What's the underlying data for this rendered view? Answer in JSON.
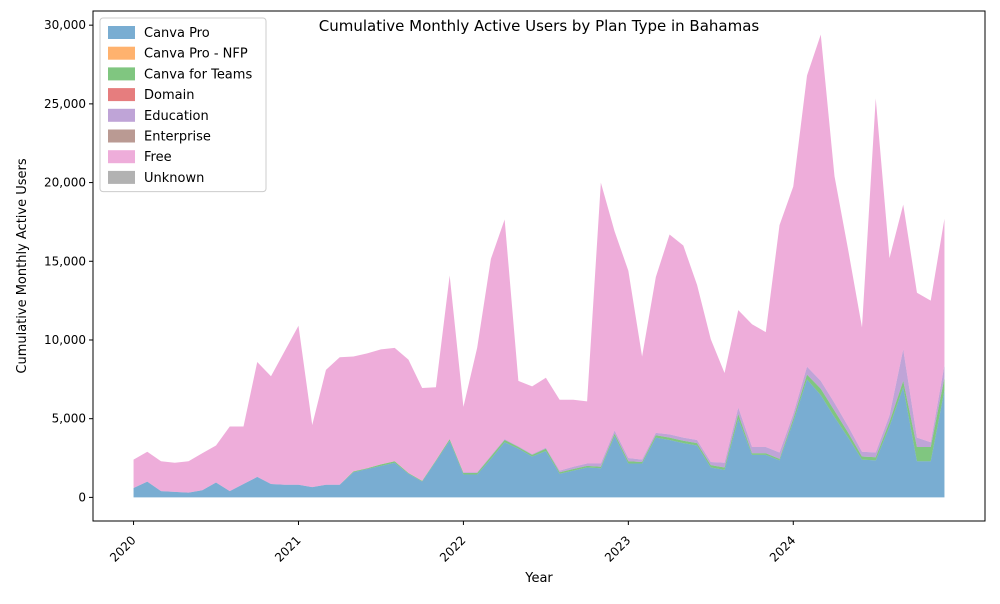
{
  "chart_data": {
    "type": "area",
    "stacked": true,
    "title": "Cumulative Monthly Active Users by Plan Type in Bahamas",
    "xlabel": "Year",
    "ylabel": "Cumulative Monthly Active Users",
    "x_start": "2020-01",
    "x_end": "2024-12",
    "x_ticks": [
      {
        "date": "2020-01",
        "label": "2020"
      },
      {
        "date": "2021-01",
        "label": "2021"
      },
      {
        "date": "2022-01",
        "label": "2022"
      },
      {
        "date": "2023-01",
        "label": "2023"
      },
      {
        "date": "2024-01",
        "label": "2024"
      }
    ],
    "ylim": [
      -1500,
      30900
    ],
    "y_ticks": [
      {
        "value": 0,
        "label": "0"
      },
      {
        "value": 5000,
        "label": "5,000"
      },
      {
        "value": 10000,
        "label": "10,000"
      },
      {
        "value": 15000,
        "label": "15,000"
      },
      {
        "value": 20000,
        "label": "20,000"
      },
      {
        "value": 25000,
        "label": "25,000"
      },
      {
        "value": 30000,
        "label": "30,000"
      }
    ],
    "grid": false,
    "legend_position": "top-left",
    "categories": [
      "2020-01",
      "2020-02",
      "2020-03",
      "2020-04",
      "2020-05",
      "2020-06",
      "2020-07",
      "2020-08",
      "2020-09",
      "2020-10",
      "2020-11",
      "2020-12",
      "2021-01",
      "2021-02",
      "2021-03",
      "2021-04",
      "2021-05",
      "2021-06",
      "2021-07",
      "2021-08",
      "2021-09",
      "2021-10",
      "2021-11",
      "2021-12",
      "2022-01",
      "2022-02",
      "2022-03",
      "2022-04",
      "2022-05",
      "2022-06",
      "2022-07",
      "2022-08",
      "2022-09",
      "2022-10",
      "2022-11",
      "2022-12",
      "2023-01",
      "2023-02",
      "2023-03",
      "2023-04",
      "2023-05",
      "2023-06",
      "2023-07",
      "2023-08",
      "2023-09",
      "2023-10",
      "2023-11",
      "2023-12",
      "2024-01",
      "2024-02",
      "2024-03",
      "2024-04",
      "2024-05",
      "2024-06",
      "2024-07",
      "2024-08",
      "2024-09",
      "2024-10",
      "2024-11",
      "2024-12"
    ],
    "series": [
      {
        "name": "Canva Pro",
        "color": "#1f77b4",
        "values": [
          600,
          1000,
          400,
          350,
          300,
          450,
          950,
          400,
          850,
          1300,
          850,
          800,
          800,
          650,
          800,
          800,
          1600,
          1800,
          2000,
          2200,
          1500,
          1000,
          2300,
          3600,
          1450,
          1450,
          2450,
          3500,
          3100,
          2600,
          2950,
          1500,
          1700,
          1900,
          1850,
          3900,
          2150,
          2150,
          3800,
          3650,
          3450,
          3300,
          1900,
          1750,
          5000,
          2700,
          2700,
          2350,
          4800,
          7500,
          6500,
          5100,
          3800,
          2400,
          2350,
          4500,
          7000,
          2300,
          2300,
          6800
        ]
      },
      {
        "name": "Canva Pro - NFP",
        "color": "#ff7f0e",
        "values": [
          0,
          0,
          0,
          0,
          0,
          0,
          0,
          0,
          0,
          0,
          0,
          0,
          0,
          0,
          0,
          0,
          0,
          0,
          0,
          0,
          0,
          0,
          0,
          0,
          0,
          0,
          0,
          0,
          0,
          0,
          0,
          0,
          0,
          0,
          0,
          0,
          0,
          0,
          0,
          0,
          0,
          0,
          0,
          0,
          0,
          0,
          0,
          0,
          0,
          0,
          0,
          0,
          0,
          0,
          0,
          0,
          0,
          0,
          0,
          0
        ]
      },
      {
        "name": "Canva for Teams",
        "color": "#2ca02c",
        "values": [
          0,
          0,
          0,
          0,
          0,
          0,
          0,
          0,
          0,
          0,
          0,
          0,
          0,
          0,
          0,
          0,
          50,
          50,
          100,
          100,
          50,
          50,
          50,
          100,
          100,
          100,
          150,
          150,
          100,
          100,
          150,
          100,
          100,
          100,
          100,
          150,
          150,
          100,
          150,
          150,
          150,
          150,
          150,
          150,
          300,
          100,
          100,
          100,
          200,
          300,
          400,
          400,
          300,
          200,
          200,
          300,
          400,
          900,
          900,
          800
        ]
      },
      {
        "name": "Domain",
        "color": "#d62728",
        "values": [
          0,
          0,
          0,
          0,
          0,
          0,
          0,
          0,
          0,
          0,
          0,
          0,
          0,
          0,
          0,
          0,
          0,
          0,
          0,
          0,
          0,
          0,
          0,
          0,
          0,
          0,
          0,
          0,
          0,
          0,
          0,
          0,
          0,
          0,
          0,
          0,
          0,
          0,
          0,
          0,
          0,
          0,
          0,
          0,
          0,
          0,
          0,
          0,
          0,
          0,
          0,
          0,
          0,
          0,
          0,
          0,
          0,
          0,
          0,
          0
        ]
      },
      {
        "name": "Education",
        "color": "#9467bd",
        "values": [
          0,
          0,
          0,
          0,
          0,
          0,
          0,
          0,
          0,
          0,
          0,
          0,
          0,
          0,
          0,
          0,
          0,
          0,
          0,
          0,
          0,
          0,
          0,
          0,
          50,
          50,
          50,
          50,
          50,
          50,
          50,
          100,
          150,
          150,
          200,
          200,
          200,
          150,
          150,
          200,
          200,
          200,
          200,
          300,
          400,
          400,
          400,
          400,
          300,
          500,
          500,
          500,
          400,
          300,
          300,
          400,
          2000,
          600,
          300,
          800
        ]
      },
      {
        "name": "Enterprise",
        "color": "#8c564b",
        "values": [
          0,
          0,
          0,
          0,
          0,
          0,
          0,
          0,
          0,
          0,
          0,
          0,
          0,
          0,
          0,
          0,
          0,
          0,
          0,
          0,
          0,
          0,
          0,
          0,
          0,
          0,
          0,
          0,
          0,
          0,
          0,
          0,
          0,
          0,
          0,
          0,
          0,
          0,
          0,
          0,
          0,
          0,
          0,
          0,
          0,
          0,
          0,
          0,
          0,
          0,
          0,
          0,
          0,
          0,
          0,
          0,
          0,
          0,
          0,
          0
        ]
      },
      {
        "name": "Free",
        "color": "#e377c2",
        "values": [
          1800,
          1900,
          1900,
          1850,
          2000,
          2350,
          2350,
          4100,
          3650,
          7300,
          6850,
          8500,
          10100,
          3950,
          7300,
          8100,
          7300,
          7300,
          7300,
          7200,
          7200,
          5900,
          4650,
          10400,
          4150,
          7900,
          12500,
          13950,
          4150,
          4300,
          4450,
          4500,
          4250,
          3950,
          17850,
          12650,
          11900,
          6550,
          9900,
          12700,
          12200,
          9850,
          7800,
          5700,
          6200,
          7800,
          7300,
          14450,
          14450,
          18500,
          22000,
          14400,
          11200,
          7900,
          22500,
          10000,
          9200,
          9200,
          9000,
          9300
        ]
      },
      {
        "name": "Unknown",
        "color": "#7f7f7f",
        "values": [
          0,
          0,
          0,
          0,
          0,
          0,
          0,
          0,
          0,
          0,
          0,
          0,
          0,
          0,
          0,
          0,
          0,
          0,
          0,
          0,
          0,
          0,
          0,
          0,
          0,
          0,
          0,
          0,
          0,
          0,
          0,
          0,
          0,
          0,
          0,
          0,
          0,
          0,
          0,
          0,
          0,
          0,
          0,
          0,
          0,
          0,
          0,
          0,
          0,
          0,
          0,
          0,
          0,
          0,
          0,
          0,
          0,
          0,
          0,
          0
        ]
      }
    ]
  }
}
